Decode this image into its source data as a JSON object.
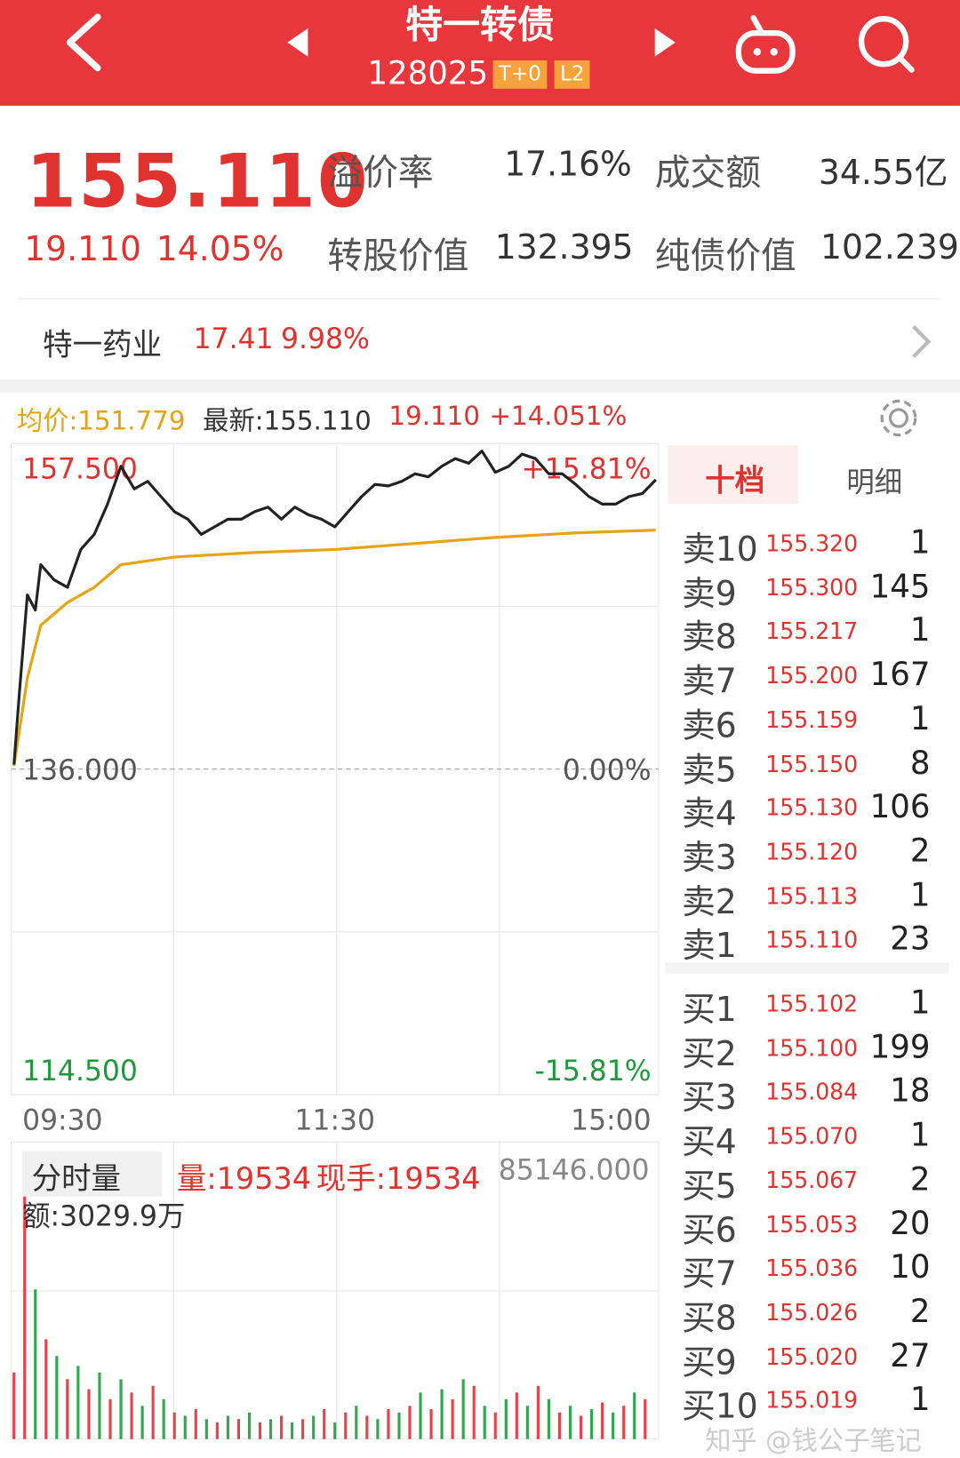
{
  "header": {
    "title": "特一转债",
    "code": "128025",
    "badges": [
      "T+0",
      "L2"
    ]
  },
  "quote": {
    "price": "155.110",
    "change": "19.110",
    "change_pct": "14.05%",
    "metrics": [
      {
        "label": "溢价率",
        "value": "17.16%"
      },
      {
        "label": "成交额",
        "value": "34.55亿"
      },
      {
        "label": "转股价值",
        "value": "132.395"
      },
      {
        "label": "纯债价值",
        "value": "102.239"
      }
    ]
  },
  "stock": {
    "name": "特一药业",
    "price": "17.41",
    "change_pct": "9.98%"
  },
  "chart_info": {
    "avg": "均价:151.779",
    "latest": "最新:155.110",
    "change": "19.110",
    "change_pct": "+14.051%"
  },
  "intraday": {
    "type": "line",
    "xlim": [
      0,
      240
    ],
    "ylim": [
      114.5,
      157.5
    ],
    "xticks": [
      {
        "value": 0,
        "label": "09:30"
      },
      {
        "value": 120,
        "label": "11:30"
      },
      {
        "value": 240,
        "label": "15:00"
      }
    ],
    "yticks": [
      {
        "value": 157.5,
        "label": "157.500"
      },
      {
        "value": 136,
        "label": "136.000"
      },
      {
        "value": 114.5,
        "label": "114.500"
      }
    ],
    "pct_labels": [
      "+15.81%",
      "0.00%",
      "-15.81%"
    ],
    "series": [
      {
        "color": "#222222",
        "x": [
          0,
          2,
          5,
          8,
          10,
          15,
          20,
          25,
          30,
          35,
          40,
          45,
          50,
          55,
          60,
          65,
          70,
          75,
          80,
          85,
          90,
          95,
          100,
          105,
          110,
          115,
          120,
          125,
          130,
          135,
          140,
          145,
          150,
          155,
          160,
          165,
          170,
          175,
          180,
          185,
          190,
          195,
          200,
          205,
          210,
          215,
          220,
          225,
          230,
          235,
          240
        ],
        "values": [
          136.3,
          141,
          147.5,
          146.5,
          149.5,
          148.5,
          148,
          150.5,
          151.5,
          153.5,
          156,
          154.5,
          155,
          154,
          153,
          152.5,
          151.5,
          152,
          152.5,
          152.5,
          153,
          153.3,
          152.5,
          153.3,
          152.8,
          152.5,
          152,
          153,
          154,
          154.8,
          154.7,
          155,
          155.5,
          155.3,
          156,
          156.5,
          156.2,
          157,
          155.6,
          156,
          156.8,
          156.5,
          155.5,
          155.5,
          154.8,
          154,
          153.5,
          153.5,
          154,
          154.2,
          155.11
        ]
      },
      {
        "color": "#e6a415",
        "x": [
          0,
          5,
          10,
          20,
          30,
          40,
          60,
          90,
          120,
          150,
          180,
          210,
          240
        ],
        "values": [
          136.2,
          142,
          145.5,
          147,
          148,
          149.5,
          150,
          150.3,
          150.5,
          150.9,
          151.3,
          151.6,
          151.78
        ]
      }
    ]
  },
  "volume": {
    "type": "bar",
    "title": "分时量",
    "vol": "量:19534",
    "hand": "现手:19534",
    "amount": "额:3029.9万",
    "ylim": [
      0,
      85146
    ],
    "yticks": [
      {
        "value": 85146,
        "label": "85146.000"
      }
    ],
    "series": [
      {
        "color": "#e8414a",
        "x": [
          0,
          4,
          12,
          20,
          28,
          36,
          44,
          52,
          60,
          68,
          76,
          84,
          92,
          100,
          108,
          116,
          124,
          132,
          140,
          148,
          156,
          164,
          172,
          180,
          188,
          196,
          204,
          212,
          220,
          228,
          236
        ],
        "values": [
          20000,
          77000,
          30000,
          18000,
          15000,
          12000,
          14000,
          16000,
          8000,
          9000,
          5000,
          6000,
          5000,
          7000,
          6000,
          9000,
          8000,
          7000,
          9000,
          10000,
          9000,
          12000,
          16000,
          8000,
          14000,
          16000,
          8000,
          7000,
          11000,
          10000,
          12000
        ]
      },
      {
        "color": "#2fa84f",
        "x": [
          8,
          16,
          24,
          32,
          40,
          48,
          56,
          64,
          72,
          80,
          88,
          96,
          104,
          112,
          120,
          128,
          136,
          144,
          152,
          160,
          168,
          176,
          184,
          192,
          200,
          208,
          216,
          224,
          232
        ],
        "values": [
          45000,
          25000,
          22000,
          20000,
          18000,
          10000,
          12000,
          7000,
          6000,
          7000,
          8000,
          6000,
          5000,
          7000,
          5000,
          10000,
          6000,
          8000,
          14000,
          15000,
          18000,
          10000,
          12000,
          10000,
          12000,
          10000,
          9000,
          8000,
          14000
        ]
      }
    ]
  },
  "order_book": {
    "tabs": [
      "十档",
      "明细"
    ],
    "asks": [
      {
        "label": "卖10",
        "price": "155.320",
        "qty": "1"
      },
      {
        "label": "卖9",
        "price": "155.300",
        "qty": "145"
      },
      {
        "label": "卖8",
        "price": "155.217",
        "qty": "1"
      },
      {
        "label": "卖7",
        "price": "155.200",
        "qty": "167"
      },
      {
        "label": "卖6",
        "price": "155.159",
        "qty": "1"
      },
      {
        "label": "卖5",
        "price": "155.150",
        "qty": "8"
      },
      {
        "label": "卖4",
        "price": "155.130",
        "qty": "106"
      },
      {
        "label": "卖3",
        "price": "155.120",
        "qty": "2"
      },
      {
        "label": "卖2",
        "price": "155.113",
        "qty": "1"
      },
      {
        "label": "卖1",
        "price": "155.110",
        "qty": "23"
      }
    ],
    "bids": [
      {
        "label": "买1",
        "price": "155.102",
        "qty": "1"
      },
      {
        "label": "买2",
        "price": "155.100",
        "qty": "199"
      },
      {
        "label": "买3",
        "price": "155.084",
        "qty": "18"
      },
      {
        "label": "买4",
        "price": "155.070",
        "qty": "1"
      },
      {
        "label": "买5",
        "price": "155.067",
        "qty": "2"
      },
      {
        "label": "买6",
        "price": "155.053",
        "qty": "20"
      },
      {
        "label": "买7",
        "price": "155.036",
        "qty": "10"
      },
      {
        "label": "买8",
        "price": "155.026",
        "qty": "2"
      },
      {
        "label": "买9",
        "price": "155.020",
        "qty": "27"
      },
      {
        "label": "买10",
        "price": "155.019",
        "qty": "1"
      }
    ]
  },
  "watermark": "知乎 @钱公子笔记"
}
